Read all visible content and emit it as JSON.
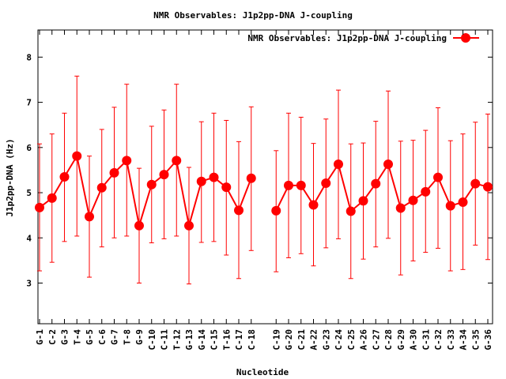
{
  "chart_data": {
    "type": "line",
    "title": "NMR Observables: J1p2pp-DNA J-coupling",
    "xlabel": "Nucleotide",
    "ylabel": "J1p2pp-DNA (Hz)",
    "ylim": [
      2.1,
      8.6
    ],
    "yticks": [
      3,
      4,
      5,
      6,
      7,
      8
    ],
    "legend_position": "top-right",
    "grid": false,
    "colors": {
      "series": "#ff0000",
      "axis": "#000000"
    },
    "categories": [
      "G-1",
      "C-2",
      "G-3",
      "T-4",
      "G-5",
      "C-6",
      "G-7",
      "T-8",
      "G-9",
      "C-10",
      "C-11",
      "T-12",
      "G-13",
      "G-14",
      "C-15",
      "T-16",
      "C-17",
      "C-18",
      "",
      "C-19",
      "G-20",
      "C-21",
      "A-22",
      "G-23",
      "C-24",
      "C-25",
      "A-26",
      "C-27",
      "C-28",
      "G-29",
      "A-30",
      "C-31",
      "C-32",
      "C-33",
      "A-34",
      "C-35",
      "G-36"
    ],
    "series": [
      {
        "name": "NMR Observables: J1p2pp-DNA J-coupling",
        "values": [
          4.67,
          4.88,
          5.35,
          5.81,
          4.47,
          5.11,
          5.44,
          5.71,
          4.27,
          5.18,
          5.4,
          5.71,
          4.27,
          5.25,
          5.34,
          5.12,
          4.61,
          5.32,
          null,
          4.6,
          5.16,
          5.16,
          4.73,
          5.21,
          5.63,
          4.59,
          4.82,
          5.2,
          5.63,
          4.66,
          4.83,
          5.02,
          5.34,
          4.71,
          4.79,
          5.2,
          5.13
        ],
        "error_low": [
          3.27,
          3.46,
          3.92,
          4.04,
          3.13,
          3.8,
          4.0,
          4.04,
          3.0,
          3.89,
          3.98,
          4.04,
          2.98,
          3.9,
          3.92,
          3.62,
          3.1,
          3.72,
          null,
          3.25,
          3.56,
          3.65,
          3.38,
          3.78,
          3.98,
          3.1,
          3.53,
          3.8,
          3.99,
          3.18,
          3.49,
          3.68,
          3.77,
          3.27,
          3.3,
          3.84,
          3.52
        ],
        "error_high": [
          6.08,
          6.3,
          6.76,
          7.58,
          5.81,
          6.4,
          6.89,
          7.4,
          5.54,
          6.47,
          6.83,
          7.4,
          5.56,
          6.57,
          6.76,
          6.6,
          6.13,
          6.9,
          null,
          5.93,
          6.76,
          6.67,
          6.09,
          6.63,
          7.27,
          6.08,
          6.1,
          6.58,
          7.25,
          6.14,
          6.16,
          6.38,
          6.88,
          6.15,
          6.3,
          6.56,
          6.74
        ]
      }
    ]
  }
}
